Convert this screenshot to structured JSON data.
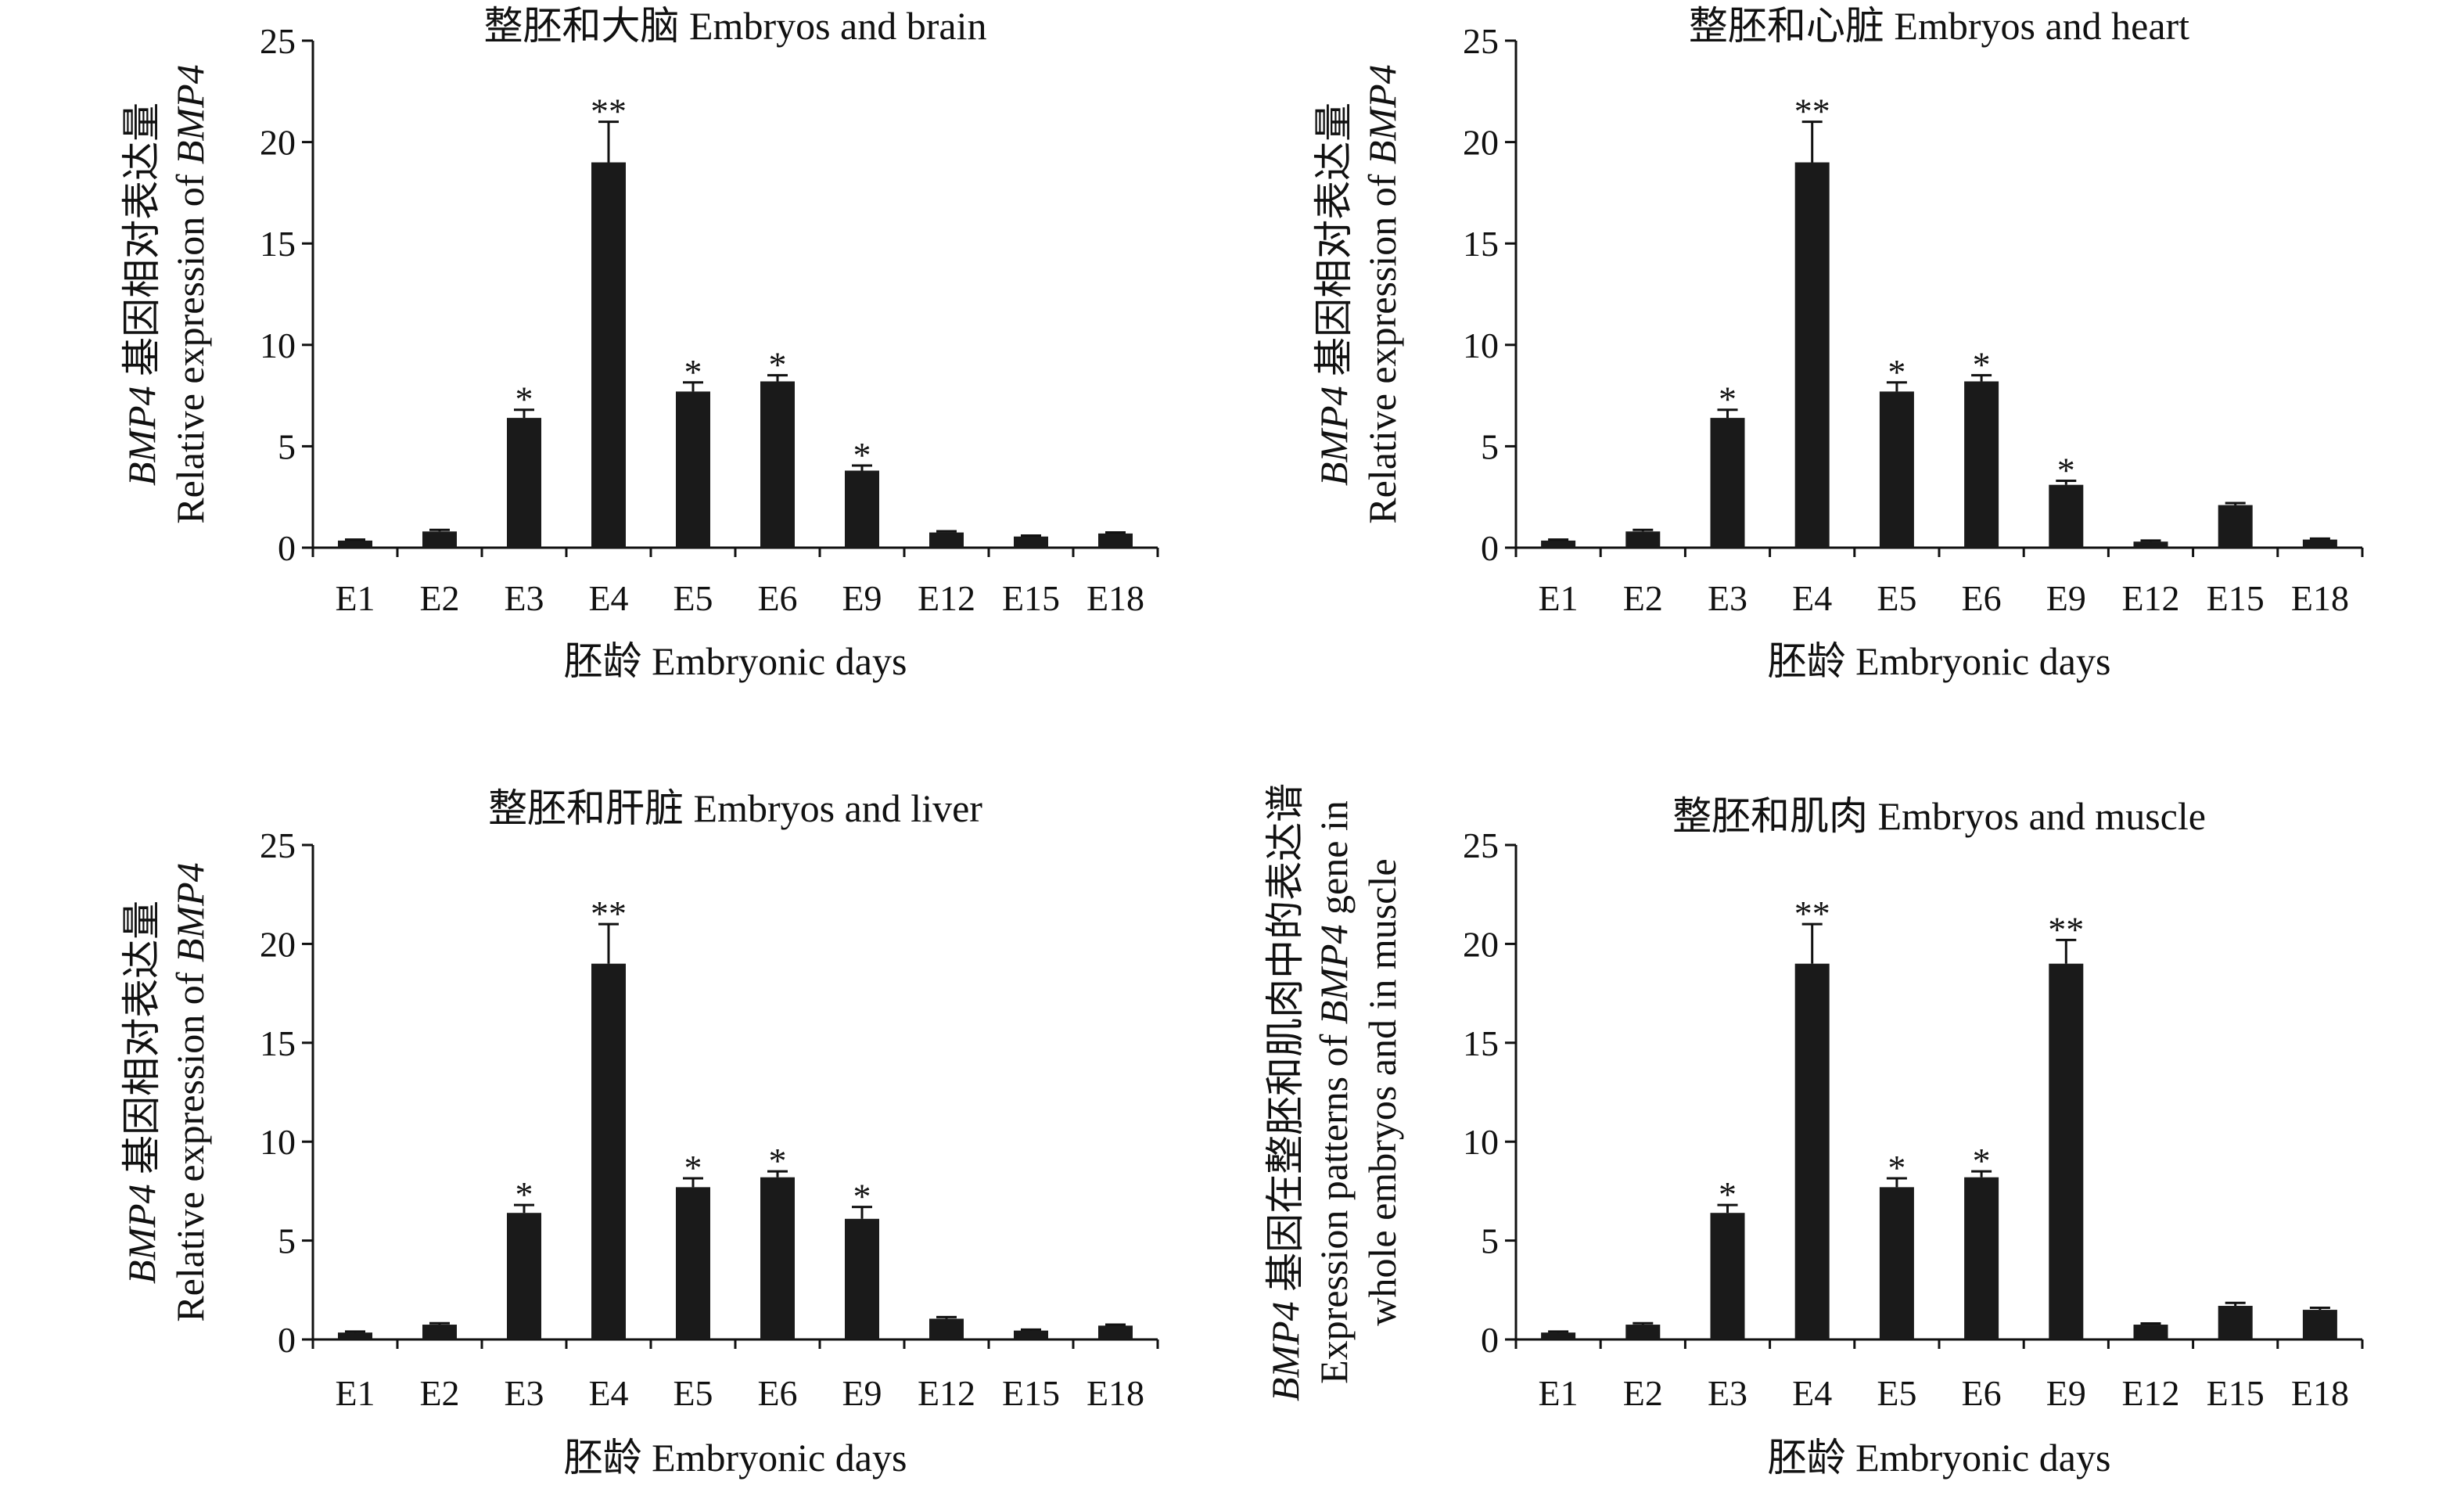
{
  "chart_data": [
    {
      "type": "bar",
      "title": "整胚和大脑 Embryos and brain",
      "xlabel": "胚龄 Embryonic days",
      "ylabel_italic": "BMP4",
      "ylabel_line1": " 基因相对表达量",
      "ylabel_line2": "Relative expression of ",
      "ylabel_line2_italic": "BMP4",
      "ylabel_line3": "",
      "categories": [
        "E1",
        "E2",
        "E3",
        "E4",
        "E5",
        "E6",
        "E9",
        "E12",
        "E15",
        "E18"
      ],
      "values": [
        0.35,
        0.8,
        6.4,
        19.0,
        7.7,
        8.2,
        3.8,
        0.75,
        0.55,
        0.7
      ],
      "errors": [
        0.05,
        0.08,
        0.4,
        2.0,
        0.45,
        0.3,
        0.25,
        0.06,
        0.05,
        0.05
      ],
      "significance": [
        "",
        "",
        "*",
        "**",
        "*",
        "*",
        "*",
        "",
        "",
        ""
      ],
      "ylim": [
        0,
        25
      ],
      "yticks": [
        0,
        5,
        10,
        15,
        20,
        25
      ],
      "grid": false
    },
    {
      "type": "bar",
      "title": "整胚和心脏 Embryos and heart",
      "xlabel": "胚龄 Embryonic days",
      "ylabel_italic": "BMP4",
      "ylabel_line1": " 基因相对表达量",
      "ylabel_line2": "Relative expression of ",
      "ylabel_line2_italic": "BMP4",
      "ylabel_line3": "",
      "categories": [
        "E1",
        "E2",
        "E3",
        "E4",
        "E5",
        "E6",
        "E9",
        "E12",
        "E15",
        "E18"
      ],
      "values": [
        0.35,
        0.8,
        6.4,
        19.0,
        7.7,
        8.2,
        3.1,
        0.3,
        2.1,
        0.4
      ],
      "errors": [
        0.05,
        0.08,
        0.4,
        2.0,
        0.45,
        0.3,
        0.2,
        0.05,
        0.1,
        0.05
      ],
      "significance": [
        "",
        "",
        "*",
        "**",
        "*",
        "*",
        "*",
        "",
        "",
        ""
      ],
      "ylim": [
        0,
        25
      ],
      "yticks": [
        0,
        5,
        10,
        15,
        20,
        25
      ],
      "grid": false
    },
    {
      "type": "bar",
      "title": "整胚和肝脏 Embryos and liver",
      "xlabel": "胚龄 Embryonic days",
      "ylabel_italic": "BMP4",
      "ylabel_line1": " 基因相对表达量",
      "ylabel_line2": "Relative expression of ",
      "ylabel_line2_italic": "BMP4",
      "ylabel_line3": "",
      "categories": [
        "E1",
        "E2",
        "E3",
        "E4",
        "E5",
        "E6",
        "E9",
        "E12",
        "E15",
        "E18"
      ],
      "values": [
        0.35,
        0.75,
        6.4,
        19.0,
        7.7,
        8.2,
        6.1,
        1.05,
        0.45,
        0.7
      ],
      "errors": [
        0.05,
        0.07,
        0.4,
        2.0,
        0.45,
        0.3,
        0.6,
        0.08,
        0.05,
        0.05
      ],
      "significance": [
        "",
        "",
        "*",
        "**",
        "*",
        "*",
        "*",
        "",
        "",
        ""
      ],
      "ylim": [
        0,
        25
      ],
      "yticks": [
        0,
        5,
        10,
        15,
        20,
        25
      ],
      "grid": false
    },
    {
      "type": "bar",
      "title": "整胚和肌肉 Embryos and muscle",
      "xlabel": "胚龄 Embryonic days",
      "ylabel_italic": "BMP4",
      "ylabel_line1": " 基因在整胚和肌肉中的表达谱",
      "ylabel_line2": "Expression patterns of ",
      "ylabel_line2_italic": "BMP4",
      "ylabel_line2_suffix": " gene in",
      "ylabel_line3": "whole embryos and in muscle",
      "categories": [
        "E1",
        "E2",
        "E3",
        "E4",
        "E5",
        "E6",
        "E9",
        "E12",
        "E15",
        "E18"
      ],
      "values": [
        0.35,
        0.75,
        6.4,
        19.0,
        7.7,
        8.2,
        19.0,
        0.75,
        1.7,
        1.5
      ],
      "errors": [
        0.05,
        0.07,
        0.4,
        2.0,
        0.45,
        0.3,
        1.2,
        0.06,
        0.15,
        0.1
      ],
      "significance": [
        "",
        "",
        "*",
        "**",
        "*",
        "*",
        "**",
        "",
        "",
        ""
      ],
      "ylim": [
        0,
        25
      ],
      "yticks": [
        0,
        5,
        10,
        15,
        20,
        25
      ],
      "grid": false
    }
  ]
}
